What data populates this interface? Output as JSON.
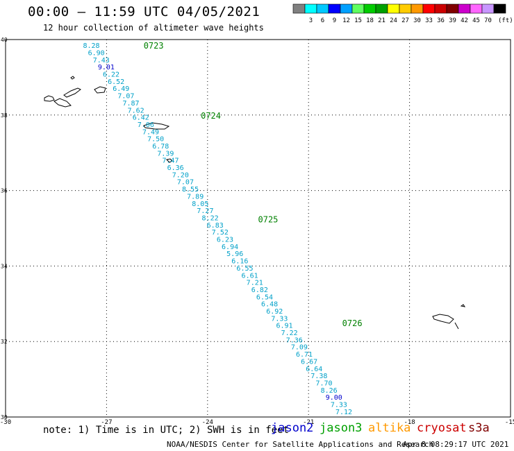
{
  "header": {
    "title": "00:00 – 11:59 UTC 04/05/2021",
    "subtitle": "12 hour collection of altimeter wave heights"
  },
  "colorbar": {
    "colors": [
      "#808080",
      "#00ffff",
      "#00c8ff",
      "#0000ff",
      "#00a0ff",
      "#60ff60",
      "#00cc00",
      "#00a000",
      "#ffff00",
      "#ffcc00",
      "#ff9900",
      "#ff0000",
      "#cc0000",
      "#800000",
      "#cc00cc",
      "#ff66ff",
      "#c896ff",
      "#000000"
    ],
    "labels": [
      "3",
      "6",
      "9",
      "12",
      "15",
      "18",
      "21",
      "24",
      "27",
      "30",
      "33",
      "36",
      "39",
      "42",
      "45",
      "70"
    ],
    "unit": "(ft)"
  },
  "map": {
    "lon_ticks": [
      "-30",
      "-27",
      "-24",
      "-21",
      "-18",
      "-15"
    ],
    "lat_ticks": [
      "30",
      "32",
      "34",
      "36",
      "38",
      "40"
    ],
    "lon_range": [
      -30,
      -15
    ],
    "lat_range": [
      30,
      40
    ]
  },
  "passes": [
    {
      "label": "0723"
    },
    {
      "label": "0724"
    },
    {
      "label": "0725"
    },
    {
      "label": "0726"
    }
  ],
  "track_values": [
    "8.28",
    "6.90",
    "7.43",
    "9.01",
    "6.22",
    "6.52",
    "6.49",
    "7.07",
    "7.87",
    "7.62",
    "6.42",
    "7.06",
    "7.49",
    "7.50",
    "6.78",
    "7.39",
    "7.47",
    "6.36",
    "7.20",
    "7.07",
    "8.55",
    "7.89",
    "8.05",
    "7.27",
    "8.22",
    "6.83",
    "7.52",
    "6.23",
    "6.94",
    "5.96",
    "6.16",
    "6.55",
    "6.61",
    "7.21",
    "6.82",
    "6.54",
    "6.48",
    "6.92",
    "7.33",
    "6.91",
    "7.22",
    "7.36",
    "7.09",
    "6.71",
    "6.67",
    "6.64",
    "7.38",
    "7.70",
    "8.26",
    "9.00",
    "7.33",
    "7.12"
  ],
  "footer": {
    "note": "note:  1) Time is in UTC; 2) SWH is in feet",
    "legend": [
      {
        "name": "jason2",
        "color": "#0000cc"
      },
      {
        "name": "jason3",
        "color": "#00a000"
      },
      {
        "name": "altika",
        "color": "#ff9900"
      },
      {
        "name": "cryosat",
        "color": "#cc0000"
      },
      {
        "name": "s3a",
        "color": "#800000"
      }
    ],
    "credit": "NOAA/NESDIS Center for Satellite Applications and Research",
    "generated": "Apr  8 08:29:17 UTC 2021"
  }
}
